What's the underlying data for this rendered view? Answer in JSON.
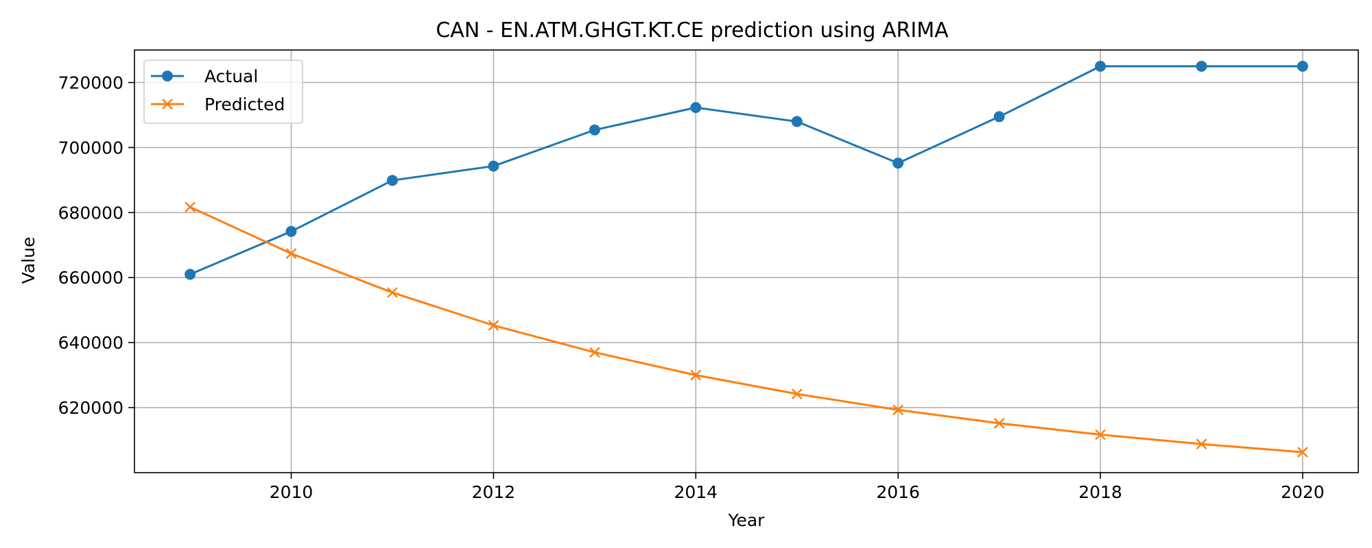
{
  "chart_data": {
    "type": "line",
    "title": "CAN - EN.ATM.GHGT.KT.CE prediction using ARIMA",
    "xlabel": "Year",
    "ylabel": "Value",
    "x": [
      2009,
      2010,
      2011,
      2012,
      2013,
      2014,
      2015,
      2016,
      2017,
      2018,
      2019,
      2020
    ],
    "xlim": [
      2008.45,
      2020.55
    ],
    "ylim": [
      600000,
      730000
    ],
    "xticks": [
      2010,
      2012,
      2014,
      2016,
      2018,
      2020
    ],
    "yticks": [
      620000,
      640000,
      660000,
      680000,
      700000,
      720000
    ],
    "xtick_labels": [
      "2010",
      "2012",
      "2014",
      "2016",
      "2018",
      "2020"
    ],
    "ytick_labels": [
      "620000",
      "640000",
      "660000",
      "680000",
      "700000",
      "720000"
    ],
    "grid": true,
    "legend_position": "top-left",
    "series": [
      {
        "name": "Actual",
        "color": "#1f77b4",
        "marker": "circle",
        "values": [
          661000,
          674200,
          689900,
          694300,
          705400,
          712300,
          708000,
          695200,
          709500,
          725000,
          725000,
          725000
        ]
      },
      {
        "name": "Predicted",
        "color": "#ff7f0e",
        "marker": "x",
        "values": [
          681700,
          667400,
          655400,
          645300,
          637000,
          630000,
          624200,
          619300,
          615200,
          611700,
          608800,
          606300
        ]
      }
    ]
  }
}
